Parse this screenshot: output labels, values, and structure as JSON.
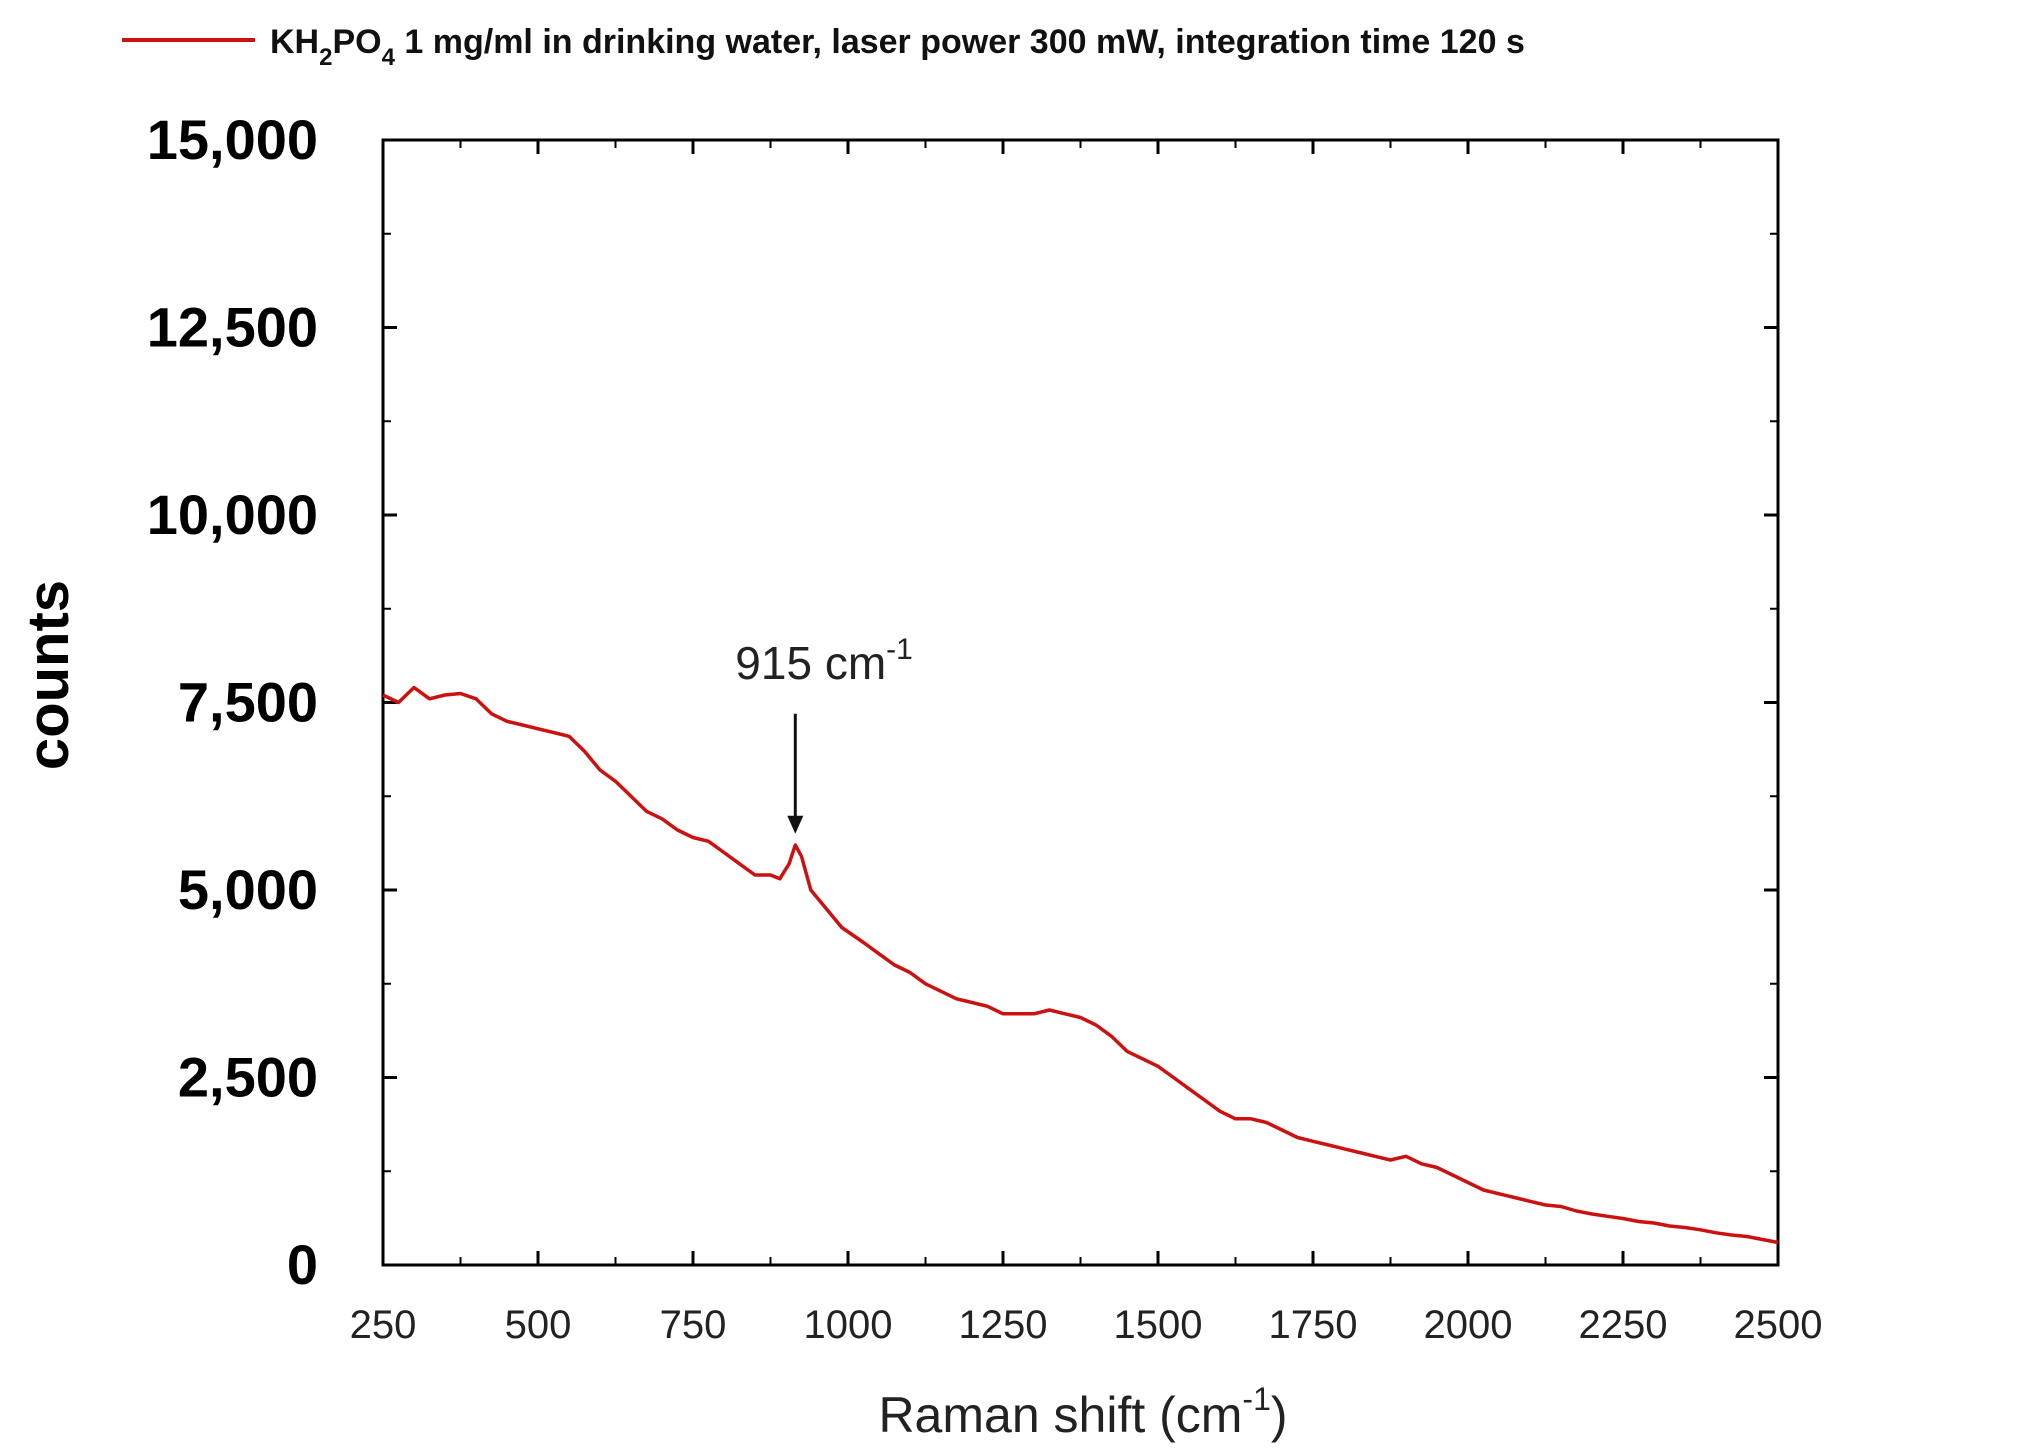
{
  "chart_data": {
    "type": "line",
    "legend": {
      "prefix": "KH",
      "sub1": "2",
      "mid": "PO",
      "sub2": "4",
      "suffix": " 1 mg/ml in drinking water, laser power 300 mW, integration time 120 s",
      "placement": "top"
    },
    "ylabel": "counts",
    "xlabel": "Raman shift (cm",
    "xlabel_sup": "-1",
    "xlabel_close": ")",
    "xlim": [
      250,
      2500
    ],
    "ylim": [
      0,
      15000
    ],
    "xticks": [
      250,
      500,
      750,
      1000,
      1250,
      1500,
      1750,
      2000,
      2250,
      2500
    ],
    "xtick_labels": [
      "250",
      "500",
      "750",
      "1000",
      "1250",
      "1500",
      "1750",
      "2000",
      "2250",
      "2500"
    ],
    "yticks": [
      0,
      2500,
      5000,
      7500,
      10000,
      12500,
      15000
    ],
    "ytick_labels": [
      "0",
      "2,500",
      "5,000",
      "7,500",
      "10,000",
      "12,500",
      "15,000"
    ],
    "grid": false,
    "series": [
      {
        "name": "KH2PO4 1 mg/ml in drinking water, laser power 300 mW, integration time 120 s",
        "color": "#cc1111",
        "x": [
          250,
          275,
          300,
          325,
          350,
          375,
          400,
          425,
          450,
          475,
          500,
          525,
          550,
          575,
          600,
          625,
          650,
          675,
          700,
          725,
          750,
          775,
          800,
          825,
          850,
          875,
          890,
          905,
          915,
          925,
          940,
          960,
          990,
          1025,
          1050,
          1075,
          1100,
          1125,
          1150,
          1175,
          1200,
          1225,
          1250,
          1275,
          1300,
          1325,
          1350,
          1375,
          1400,
          1425,
          1450,
          1475,
          1500,
          1525,
          1550,
          1575,
          1600,
          1625,
          1650,
          1675,
          1700,
          1725,
          1750,
          1775,
          1800,
          1825,
          1850,
          1875,
          1900,
          1925,
          1950,
          1975,
          2000,
          2025,
          2050,
          2075,
          2100,
          2125,
          2150,
          2175,
          2200,
          2225,
          2250,
          2275,
          2300,
          2325,
          2350,
          2375,
          2400,
          2425,
          2450,
          2475,
          2500
        ],
        "y": [
          7600,
          7500,
          7700,
          7550,
          7600,
          7620,
          7550,
          7350,
          7250,
          7200,
          7150,
          7100,
          7050,
          6850,
          6600,
          6450,
          6250,
          6050,
          5950,
          5800,
          5700,
          5650,
          5500,
          5350,
          5200,
          5200,
          5150,
          5350,
          5600,
          5450,
          5000,
          4800,
          4500,
          4300,
          4150,
          4000,
          3900,
          3750,
          3650,
          3550,
          3500,
          3450,
          3350,
          3350,
          3350,
          3400,
          3350,
          3300,
          3200,
          3050,
          2850,
          2750,
          2650,
          2500,
          2350,
          2200,
          2050,
          1950,
          1950,
          1900,
          1800,
          1700,
          1650,
          1600,
          1550,
          1500,
          1450,
          1400,
          1450,
          1350,
          1300,
          1200,
          1100,
          1000,
          950,
          900,
          850,
          800,
          780,
          720,
          680,
          650,
          620,
          580,
          560,
          520,
          500,
          470,
          430,
          400,
          380,
          340,
          300
        ]
      }
    ],
    "annotations": [
      {
        "text": "915 cm",
        "sup": "-1",
        "arrow_x": 915,
        "arrow_y_start": 7350,
        "arrow_y_end": 5750
      }
    ]
  }
}
